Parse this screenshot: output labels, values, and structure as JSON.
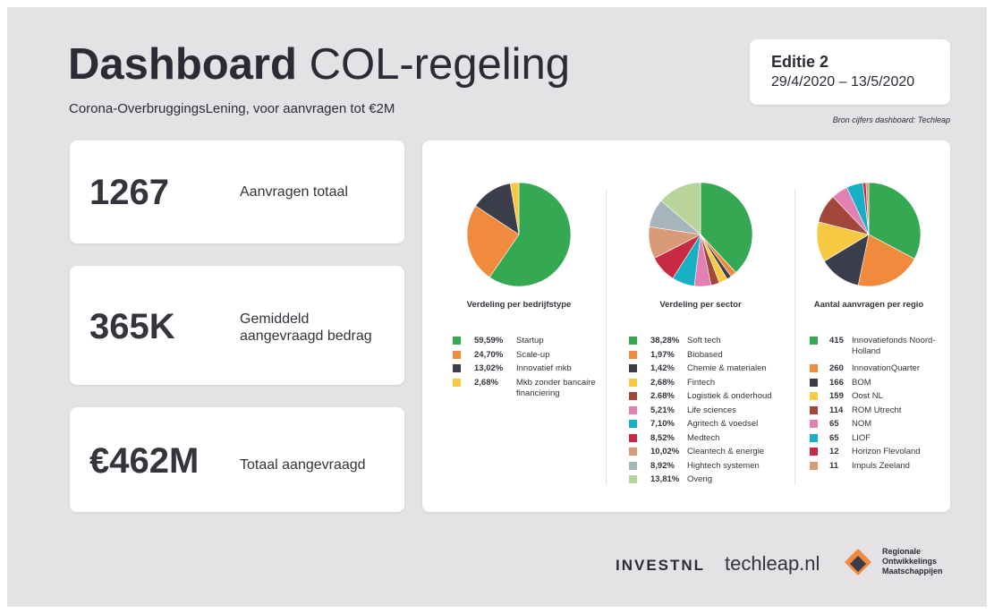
{
  "header": {
    "title_main": "Dashboard",
    "title_rest": "COL-regeling",
    "subtitle": "Corona-OverbruggingsLening, voor aanvragen tot €2M",
    "edition": "Editie 2",
    "period": "29/4/2020 – 13/5/2020",
    "source": "Bron cijfers dashboard: Techleap"
  },
  "kpis": [
    {
      "value": "1267",
      "label": "Aanvragen totaal"
    },
    {
      "value": "365K",
      "label": "Gemiddeld aangevraagd bedrag"
    },
    {
      "value": "€462M",
      "label": "Totaal aangevraagd"
    }
  ],
  "chart_data": [
    {
      "type": "pie",
      "title": "Verdeling per bedrijfstype",
      "categories": [
        "Startup",
        "Scale-up",
        "Innovatief mkb",
        "Mkb zonder bancaire financiering"
      ],
      "values": [
        59.59,
        24.7,
        13.02,
        2.68
      ],
      "value_labels": [
        "59,59%",
        "24,70%",
        "13,02%",
        "2,68%"
      ],
      "colors": [
        "#35a853",
        "#f08a3c",
        "#3b3d4b",
        "#f8c943"
      ]
    },
    {
      "type": "pie",
      "title": "Verdeling per sector",
      "categories": [
        "Soft tech",
        "Biobased",
        "Chemie & materialen",
        "Fintech",
        "Logistiek & onderhoud",
        "Life sciences",
        "Agritech & voedsel",
        "Medtech",
        "Cleantech & energie",
        "Hightech systemen",
        "Overig"
      ],
      "values": [
        38.28,
        1.97,
        1.42,
        2.68,
        2.68,
        5.21,
        7.1,
        8.52,
        10.02,
        8.92,
        13.81
      ],
      "value_labels": [
        "38,28%",
        "1,97%",
        "1,42%",
        "2,68%",
        "2.68%",
        "5,21%",
        "7,10%",
        "8,52%",
        "10,02%",
        "8,92%",
        "13,81%"
      ],
      "colors": [
        "#35a853",
        "#f08a3c",
        "#3b3d4b",
        "#f8c943",
        "#a3473c",
        "#e27fb3",
        "#16afc3",
        "#c92a43",
        "#d99a78",
        "#a8b4bc",
        "#b8d49b"
      ]
    },
    {
      "type": "pie",
      "title": "Aantal aanvragen per regio",
      "categories": [
        "Innovatiefonds Noord-Holland",
        "InnovationQuarter",
        "BOM",
        "Oost NL",
        "ROM Utrecht",
        "NOM",
        "LIOF",
        "Horizon Flevoland",
        "Impuls Zeeland"
      ],
      "values": [
        415,
        260,
        166,
        159,
        114,
        65,
        65,
        12,
        11
      ],
      "colors": [
        "#35a853",
        "#f08a3c",
        "#3b3d4b",
        "#f8c943",
        "#a3473c",
        "#e27fb3",
        "#16afc3",
        "#c92a43",
        "#d99a78"
      ]
    }
  ],
  "footer": {
    "logo_invest": "INVESTNL",
    "logo_techleap": "techleap.nl",
    "logo_rom": "Regionale Ontwikkelings Maatschappijen"
  }
}
